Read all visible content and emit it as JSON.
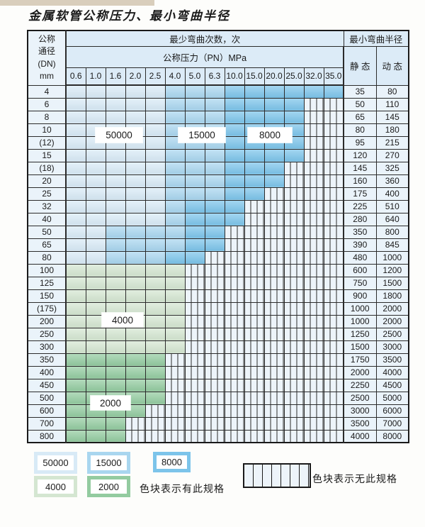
{
  "page": {
    "title": "金属软管公称压力、最小弯曲半径"
  },
  "table": {
    "header": {
      "dn_lines": [
        "公称",
        "通径",
        "(DN)",
        "mm"
      ],
      "bend_cycles_label": "最少弯曲次数，次",
      "pressure_label": "公称压力（PN）MPa",
      "radius_label": "最小弯曲半径",
      "static_label": "静 态",
      "dynamic_label": "动 态",
      "pressures": [
        "0.6",
        "1.0",
        "1.6",
        "2.0",
        "2.5",
        "4.0",
        "5.0",
        "6.3",
        "10.0",
        "15.0",
        "20.0",
        "25.0",
        "32.0",
        "35.0"
      ]
    },
    "cell_legend": "cells string per row, one char per pressure column: L=50000 zone, M=15000 zone, D=8000 zone, G=4000 zone, E=2000 zone, H=no-spec hatched",
    "rows": [
      {
        "dn": "4",
        "cells": "LLLLLMMMDDDDDD",
        "static": "35",
        "dynamic": "80"
      },
      {
        "dn": "6",
        "cells": "LLLLLMMMDDDDHH",
        "static": "50",
        "dynamic": "110"
      },
      {
        "dn": "8",
        "cells": "LLLLLMMMDDDDHH",
        "static": "65",
        "dynamic": "145"
      },
      {
        "dn": "10",
        "cells": "LLLLLMMMDDDDHH",
        "static": "80",
        "dynamic": "180"
      },
      {
        "dn": "(12)",
        "cells": "LLLLLMMMDDDDHH",
        "static": "95",
        "dynamic": "215"
      },
      {
        "dn": "15",
        "cells": "LLLLLMMMDDDDHH",
        "static": "120",
        "dynamic": "270"
      },
      {
        "dn": "(18)",
        "cells": "LLLLLMMMDDDHHH",
        "static": "145",
        "dynamic": "325"
      },
      {
        "dn": "20",
        "cells": "LLLLLMMMDDDHHH",
        "static": "160",
        "dynamic": "360"
      },
      {
        "dn": "25",
        "cells": "LLLLLMMMDDHHHH",
        "static": "175",
        "dynamic": "400"
      },
      {
        "dn": "32",
        "cells": "LLLLLMDDDHHHHH",
        "static": "225",
        "dynamic": "510"
      },
      {
        "dn": "40",
        "cells": "LLLLLMDDDHHHHH",
        "static": "280",
        "dynamic": "640"
      },
      {
        "dn": "50",
        "cells": "LLMMMMDDHHHHHH",
        "static": "350",
        "dynamic": "800"
      },
      {
        "dn": "65",
        "cells": "LLMMMMDDHHHHHH",
        "static": "390",
        "dynamic": "845"
      },
      {
        "dn": "80",
        "cells": "LLMMMDDHHHHHHH",
        "static": "480",
        "dynamic": "1000"
      },
      {
        "dn": "100",
        "cells": "GGGGGGHHHHHHHH",
        "static": "600",
        "dynamic": "1200"
      },
      {
        "dn": "125",
        "cells": "GGGGGGHHHHHHHH",
        "static": "750",
        "dynamic": "1500"
      },
      {
        "dn": "150",
        "cells": "GGGGGGHHHHHHHH",
        "static": "900",
        "dynamic": "1800"
      },
      {
        "dn": "(175)",
        "cells": "GGGGGGHHHHHHHH",
        "static": "1000",
        "dynamic": "2000"
      },
      {
        "dn": "200",
        "cells": "GGGGGGHHHHHHHH",
        "static": "1000",
        "dynamic": "2000"
      },
      {
        "dn": "250",
        "cells": "GGGGGGHHHHHHHH",
        "static": "1250",
        "dynamic": "2500"
      },
      {
        "dn": "300",
        "cells": "GGGGGGHHHHHHHH",
        "static": "1500",
        "dynamic": "3000"
      },
      {
        "dn": "350",
        "cells": "EEEEEHHHHHHHHH",
        "static": "1750",
        "dynamic": "3500"
      },
      {
        "dn": "400",
        "cells": "EEEEEHHHHHHHHH",
        "static": "2000",
        "dynamic": "4000"
      },
      {
        "dn": "450",
        "cells": "EEEEEHHHHHHHHH",
        "static": "2250",
        "dynamic": "4500"
      },
      {
        "dn": "500",
        "cells": "EEEEEHHHHHHHHH",
        "static": "2500",
        "dynamic": "5000"
      },
      {
        "dn": "600",
        "cells": "EEEEHHHHHHHHHH",
        "static": "3000",
        "dynamic": "6000"
      },
      {
        "dn": "700",
        "cells": "EEEHHHHHHHHHHH",
        "static": "3500",
        "dynamic": "7000"
      },
      {
        "dn": "800",
        "cells": "EEEHHHHHHHHHHH",
        "static": "4000",
        "dynamic": "8000"
      }
    ],
    "zone_labels": [
      {
        "id": "z50000",
        "text": "50000"
      },
      {
        "id": "z15000",
        "text": "15000"
      },
      {
        "id": "z8000",
        "text": "8000"
      },
      {
        "id": "z4000",
        "text": "4000"
      },
      {
        "id": "z2000",
        "text": "2000"
      }
    ]
  },
  "legend": {
    "swatches": [
      {
        "label": "50000",
        "color_key": "zone_50000"
      },
      {
        "label": "15000",
        "color_key": "zone_15000"
      },
      {
        "label": "8000",
        "color_key": "zone_8000"
      },
      {
        "label": "4000",
        "color_key": "zone_4000"
      },
      {
        "label": "2000",
        "color_key": "zone_2000"
      }
    ],
    "has_spec_text": "色块表示有此规格",
    "no_spec_text": "色块表示无此规格"
  },
  "colors": {
    "zone_50000": "#d8eaf6",
    "zone_15000": "#a9d6ef",
    "zone_8000": "#7cc4ea",
    "zone_4000": "#d4e6d1",
    "zone_2000": "#93cba0",
    "hatch_bg": "#edf4fa",
    "header_bg": "#dcebf7",
    "label_col_bg": "#eaf3fa",
    "grid_line": "#2b2b2b"
  }
}
